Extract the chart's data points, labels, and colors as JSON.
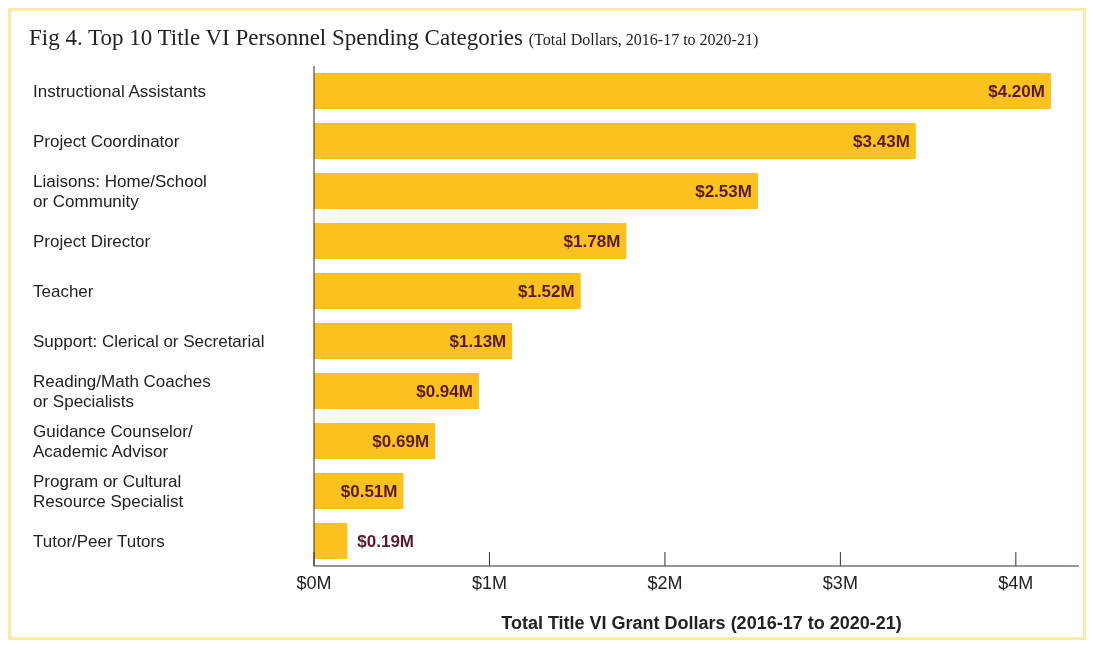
{
  "chart_data": {
    "type": "bar",
    "orientation": "horizontal",
    "title": "Fig 4. Top 10 Title VI Personnel Spending Categories",
    "subtitle": "(Total Dollars, 2016-17 to 2020-21)",
    "xlabel": "Total Title VI Grant Dollars (2016-17 to 2020-21)",
    "categories": [
      "Instructional Assistants",
      "Project Coordinator",
      "Liaisons: Home/School\nor Community",
      "Project Director",
      "Teacher",
      "Support: Clerical or Secretarial",
      "Reading/Math Coaches\nor Specialists",
      "Guidance Counselor/\nAcademic Advisor",
      "Program or Cultural\nResource Specialist",
      "Tutor/Peer Tutors"
    ],
    "values": [
      4.2,
      3.43,
      2.53,
      1.78,
      1.52,
      1.13,
      0.94,
      0.69,
      0.51,
      0.19
    ],
    "value_labels": [
      "$4.20M",
      "$3.43M",
      "$2.53M",
      "$1.78M",
      "$1.52M",
      "$1.13M",
      "$0.94M",
      "$0.69M",
      "$0.51M",
      "$0.19M"
    ],
    "color": "#fbc11f",
    "xlim": [
      0,
      4.36
    ],
    "xticks": [
      {
        "value": 0,
        "label": "$0M"
      },
      {
        "value": 1,
        "label": "$1M"
      },
      {
        "value": 2,
        "label": "$2M"
      },
      {
        "value": 3,
        "label": "$3M"
      },
      {
        "value": 4,
        "label": "$4M"
      }
    ],
    "grid": false,
    "legend": false
  }
}
